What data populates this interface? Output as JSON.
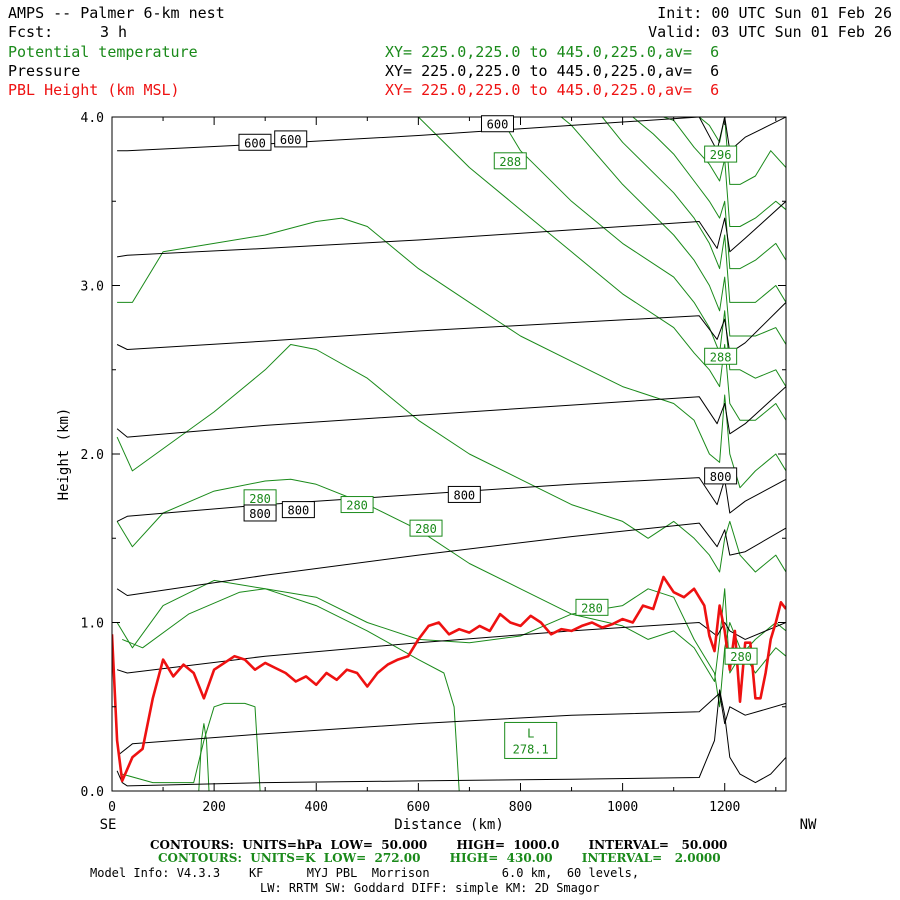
{
  "header": {
    "title": "AMPS -- Palmer 6-km nest",
    "fcst_label": "Fcst:",
    "fcst_value": "3 h",
    "init": "Init: 00 UTC Sun 01 Feb 26",
    "valid": "Valid: 03 UTC Sun 01 Feb 26"
  },
  "legend": [
    {
      "name": "Potential temperature",
      "xy": "XY= 225.0,225.0 to 445.0,225.0,av=  6",
      "color": "#1a8a1a"
    },
    {
      "name": "Pressure",
      "xy": "XY= 225.0,225.0 to 445.0,225.0,av=  6",
      "color": "#000000"
    },
    {
      "name": "PBL Height (km MSL)",
      "xy": "XY= 225.0,225.0 to 445.0,225.0,av=  6",
      "color": "#ee1111"
    }
  ],
  "footer": {
    "line1": "CONTOURS:  UNITS=hPa  LOW=  50.000       HIGH=  1000.0       INTERVAL=   50.000",
    "line2": "CONTOURS:  UNITS=K  LOW=  272.00       HIGH=  430.00       INTERVAL=   2.0000",
    "line3": "Model Info: V4.3.3    KF      MYJ PBL  Morrison          6.0 km,  60 levels,",
    "line4": "LW: RRTM SW: Goddard DIFF: simple KM: 2D Smagor"
  },
  "chart_data": {
    "type": "line",
    "xlabel": "Distance (km)",
    "ylabel": "Height (km)",
    "xlim": [
      0,
      1320
    ],
    "ylim": [
      0,
      4
    ],
    "x_ticks": [
      "0",
      "200",
      "400",
      "600",
      "800",
      "1000",
      "1200"
    ],
    "y_ticks": [
      "0.0",
      "1.0",
      "2.0",
      "3.0",
      "4.0"
    ],
    "x_end_labels": {
      "left": "SE",
      "right": "NW"
    },
    "contour_labels": [
      {
        "text": "600",
        "x": 280,
        "y": 3.85,
        "color": "#000000"
      },
      {
        "text": "600",
        "x": 350,
        "y": 3.87,
        "color": "#000000"
      },
      {
        "text": "600",
        "x": 755,
        "y": 3.96,
        "color": "#000000"
      },
      {
        "text": "288",
        "x": 780,
        "y": 3.74,
        "color": "#1a8a1a"
      },
      {
        "text": "296",
        "x": 1192,
        "y": 3.78,
        "color": "#1a8a1a"
      },
      {
        "text": "288",
        "x": 1192,
        "y": 2.58,
        "color": "#1a8a1a"
      },
      {
        "text": "800",
        "x": 1192,
        "y": 1.87,
        "color": "#000000"
      },
      {
        "text": "280",
        "x": 290,
        "y": 1.74,
        "color": "#1a8a1a"
      },
      {
        "text": "800",
        "x": 290,
        "y": 1.65,
        "color": "#000000"
      },
      {
        "text": "800",
        "x": 365,
        "y": 1.67,
        "color": "#000000"
      },
      {
        "text": "280",
        "x": 480,
        "y": 1.7,
        "color": "#1a8a1a"
      },
      {
        "text": "800",
        "x": 690,
        "y": 1.76,
        "color": "#000000"
      },
      {
        "text": "280",
        "x": 615,
        "y": 1.56,
        "color": "#1a8a1a"
      },
      {
        "text": "280",
        "x": 940,
        "y": 1.09,
        "color": "#1a8a1a"
      },
      {
        "text": "280",
        "x": 1232,
        "y": 0.8,
        "color": "#1a8a1a"
      }
    ],
    "low_marker": {
      "text": "L",
      "value": "278.1",
      "x": 820,
      "y": 0.3
    },
    "series": [
      {
        "name": "PBL Height (km MSL)",
        "color": "#ee1111",
        "x": [
          0,
          10,
          20,
          40,
          60,
          80,
          100,
          120,
          140,
          160,
          180,
          200,
          220,
          240,
          260,
          280,
          300,
          320,
          340,
          360,
          380,
          400,
          420,
          440,
          460,
          480,
          500,
          520,
          540,
          560,
          580,
          600,
          620,
          640,
          660,
          680,
          700,
          720,
          740,
          760,
          780,
          800,
          820,
          840,
          860,
          880,
          900,
          920,
          940,
          960,
          980,
          1000,
          1020,
          1040,
          1060,
          1080,
          1100,
          1120,
          1140,
          1160,
          1170,
          1180,
          1190,
          1200,
          1210,
          1220,
          1230,
          1240,
          1250,
          1260,
          1270,
          1280,
          1290,
          1300,
          1310,
          1320
        ],
        "y": [
          0.93,
          0.3,
          0.06,
          0.2,
          0.25,
          0.55,
          0.78,
          0.68,
          0.75,
          0.7,
          0.55,
          0.72,
          0.76,
          0.8,
          0.78,
          0.72,
          0.76,
          0.73,
          0.7,
          0.65,
          0.68,
          0.63,
          0.7,
          0.66,
          0.72,
          0.7,
          0.62,
          0.7,
          0.75,
          0.78,
          0.8,
          0.9,
          0.98,
          1.0,
          0.93,
          0.96,
          0.94,
          0.98,
          0.95,
          1.05,
          1.0,
          0.98,
          1.04,
          1.0,
          0.93,
          0.96,
          0.95,
          0.98,
          1.0,
          0.97,
          0.99,
          1.02,
          1.0,
          1.1,
          1.08,
          1.27,
          1.18,
          1.15,
          1.2,
          1.1,
          0.92,
          0.83,
          1.1,
          0.95,
          0.72,
          0.95,
          0.53,
          0.88,
          0.88,
          0.55,
          0.55,
          0.7,
          0.9,
          1.0,
          1.12,
          1.08
        ]
      },
      {
        "name": "Pressure",
        "color": "#000000",
        "levels": [
          {
            "x": [
              10,
              20,
              30,
              300,
              600,
              900,
              1150,
              1180,
              1190,
              1200,
              1210,
              1230,
              1260,
              1290,
              1320
            ],
            "y": [
              0.12,
              0.05,
              0.03,
              0.05,
              0.06,
              0.07,
              0.08,
              0.3,
              0.6,
              0.45,
              0.2,
              0.1,
              0.05,
              0.1,
              0.2
            ]
          },
          {
            "x": [
              15,
              40,
              300,
              600,
              900,
              1150,
              1190,
              1200,
              1210,
              1240,
              1320
            ],
            "y": [
              0.22,
              0.28,
              0.34,
              0.4,
              0.45,
              0.47,
              0.58,
              0.4,
              0.5,
              0.45,
              0.52
            ]
          },
          {
            "x": [
              10,
              30,
              300,
              600,
              900,
              1150,
              1185,
              1200,
              1210,
              1240,
              1320
            ],
            "y": [
              0.72,
              0.7,
              0.8,
              0.88,
              0.95,
              1.0,
              0.92,
              1.0,
              0.95,
              0.9,
              1.0
            ]
          },
          {
            "x": [
              10,
              30,
              300,
              600,
              900,
              1150,
              1185,
              1200,
              1210,
              1240,
              1320
            ],
            "y": [
              1.2,
              1.16,
              1.28,
              1.4,
              1.51,
              1.59,
              1.45,
              1.55,
              1.4,
              1.42,
              1.56
            ]
          },
          {
            "x": [
              10,
              30,
              300,
              600,
              900,
              1150,
              1185,
              1200,
              1210,
              1240,
              1320
            ],
            "y": [
              1.6,
              1.63,
              1.7,
              1.76,
              1.82,
              1.86,
              1.7,
              1.85,
              1.65,
              1.72,
              1.85
            ]
          },
          {
            "x": [
              10,
              30,
              300,
              600,
              900,
              1150,
              1185,
              1200,
              1210,
              1240,
              1320
            ],
            "y": [
              2.15,
              2.1,
              2.17,
              2.23,
              2.29,
              2.34,
              2.18,
              2.3,
              2.12,
              2.18,
              2.4
            ]
          },
          {
            "x": [
              10,
              30,
              300,
              600,
              900,
              1150,
              1185,
              1200,
              1210,
              1240,
              1320
            ],
            "y": [
              2.65,
              2.62,
              2.67,
              2.73,
              2.78,
              2.82,
              2.68,
              2.8,
              2.6,
              2.66,
              2.9
            ]
          },
          {
            "x": [
              10,
              30,
              300,
              600,
              900,
              1150,
              1185,
              1200,
              1210,
              1240,
              1320
            ],
            "y": [
              3.17,
              3.18,
              3.22,
              3.27,
              3.33,
              3.38,
              3.22,
              3.4,
              3.2,
              3.28,
              3.5
            ]
          },
          {
            "x": [
              10,
              30,
              300,
              600,
              900,
              1150,
              1185,
              1200,
              1210,
              1240,
              1320
            ],
            "y": [
              3.8,
              3.8,
              3.84,
              3.89,
              3.95,
              4.0,
              3.8,
              4.0,
              3.8,
              3.88,
              4.0
            ]
          }
        ]
      },
      {
        "name": "Potential temperature",
        "color": "#1a8a1a",
        "levels": [
          {
            "x": [
              20,
              80,
              160,
              180,
              200,
              220,
              260,
              280,
              290
            ],
            "y": [
              0.1,
              0.05,
              0.05,
              0.3,
              0.5,
              0.52,
              0.52,
              0.5,
              0.0
            ]
          },
          {
            "x": [
              170,
              175,
              180,
              185,
              190
            ],
            "y": [
              0.0,
              0.3,
              0.4,
              0.3,
              0.0
            ]
          },
          {
            "x": [
              20,
              60,
              150,
              250,
              300,
              400,
              500,
              600,
              650,
              670,
              680
            ],
            "y": [
              0.9,
              0.85,
              1.05,
              1.18,
              1.2,
              1.1,
              0.95,
              0.78,
              0.7,
              0.5,
              0.0
            ]
          },
          {
            "x": [
              10,
              40,
              100,
              200,
              300,
              400,
              500,
              600,
              700,
              800,
              900,
              1000,
              1050,
              1100,
              1140,
              1160,
              1180,
              1190,
              1200,
              1210,
              1230,
              1260,
              1300,
              1320
            ],
            "y": [
              1.0,
              0.85,
              1.1,
              1.25,
              1.2,
              1.15,
              1.0,
              0.9,
              0.88,
              0.92,
              1.05,
              1.1,
              1.2,
              1.15,
              0.9,
              0.8,
              0.7,
              0.5,
              0.85,
              1.0,
              0.85,
              0.7,
              0.85,
              0.8
            ]
          },
          {
            "x": [
              10,
              40,
              100,
              200,
              300,
              350,
              400,
              500,
              600,
              700,
              800,
              900,
              1000,
              1050,
              1100,
              1140,
              1160,
              1180,
              1190,
              1200,
              1210,
              1230,
              1260,
              1300,
              1320
            ],
            "y": [
              1.6,
              1.45,
              1.65,
              1.78,
              1.84,
              1.85,
              1.82,
              1.7,
              1.55,
              1.35,
              1.2,
              1.05,
              0.98,
              0.9,
              0.95,
              0.85,
              0.75,
              0.65,
              0.9,
              1.2,
              0.7,
              0.8,
              0.9,
              1.0,
              0.95
            ]
          },
          {
            "x": [
              10,
              40,
              200,
              300,
              350,
              400,
              500,
              600,
              700,
              800,
              900,
              1000,
              1050,
              1100,
              1140,
              1170,
              1190,
              1200,
              1210,
              1230,
              1260,
              1300,
              1320
            ],
            "y": [
              2.1,
              1.9,
              2.25,
              2.5,
              2.65,
              2.62,
              2.45,
              2.2,
              2.0,
              1.85,
              1.7,
              1.6,
              1.5,
              1.6,
              1.5,
              1.4,
              1.3,
              1.5,
              1.6,
              1.4,
              1.3,
              1.4,
              1.3
            ]
          },
          {
            "x": [
              10,
              40,
              100,
              200,
              300,
              400,
              450,
              500,
              600,
              700,
              800,
              900,
              1000,
              1100,
              1140,
              1170,
              1190,
              1200,
              1210,
              1230,
              1260,
              1300,
              1320
            ],
            "y": [
              2.9,
              2.9,
              3.2,
              3.25,
              3.3,
              3.38,
              3.4,
              3.35,
              3.1,
              2.9,
              2.7,
              2.55,
              2.4,
              2.3,
              2.2,
              2.0,
              1.95,
              2.35,
              2.0,
              1.8,
              1.9,
              2.0,
              1.9
            ]
          },
          {
            "x": [
              600,
              700,
              800,
              900,
              1000,
              1100,
              1140,
              1170,
              1190,
              1200,
              1210,
              1230,
              1260,
              1300,
              1320
            ],
            "y": [
              4.0,
              3.7,
              3.45,
              3.2,
              2.95,
              2.75,
              2.6,
              2.5,
              2.4,
              2.65,
              2.3,
              2.2,
              2.2,
              2.3,
              2.2
            ]
          },
          {
            "x": [
              760,
              800,
              900,
              1000,
              1100,
              1140,
              1170,
              1190,
              1200,
              1210,
              1230,
              1260,
              1300,
              1320
            ],
            "y": [
              4.0,
              3.8,
              3.5,
              3.25,
              3.05,
              2.9,
              2.75,
              2.6,
              2.85,
              2.5,
              2.5,
              2.45,
              2.5,
              2.4
            ]
          },
          {
            "x": [
              880,
              900,
              1000,
              1100,
              1140,
              1170,
              1190,
              1200,
              1210,
              1230,
              1260,
              1300,
              1320
            ],
            "y": [
              4.0,
              3.95,
              3.6,
              3.3,
              3.15,
              3.0,
              2.85,
              3.05,
              2.7,
              2.7,
              2.7,
              2.75,
              2.65
            ]
          },
          {
            "x": [
              960,
              1000,
              1100,
              1140,
              1170,
              1190,
              1200,
              1210,
              1230,
              1260,
              1300,
              1320
            ],
            "y": [
              4.0,
              3.85,
              3.55,
              3.4,
              3.25,
              3.1,
              3.3,
              2.9,
              2.9,
              2.9,
              3.0,
              2.9
            ]
          },
          {
            "x": [
              1020,
              1060,
              1100,
              1140,
              1170,
              1190,
              1200,
              1210,
              1230,
              1260,
              1300,
              1320
            ],
            "y": [
              4.0,
              3.9,
              3.78,
              3.62,
              3.5,
              3.4,
              3.5,
              3.1,
              3.1,
              3.15,
              3.25,
              3.15
            ]
          },
          {
            "x": [
              1080,
              1100,
              1140,
              1170,
              1190,
              1200,
              1210,
              1230,
              1260,
              1300,
              1320
            ],
            "y": [
              4.0,
              3.98,
              3.82,
              3.72,
              3.62,
              3.75,
              3.35,
              3.35,
              3.4,
              3.5,
              3.45
            ]
          },
          {
            "x": [
              1150,
              1170,
              1190,
              1200,
              1210,
              1230,
              1260,
              1290,
              1320
            ],
            "y": [
              4.0,
              3.95,
              3.85,
              4.0,
              3.6,
              3.6,
              3.65,
              3.8,
              3.7
            ]
          }
        ]
      }
    ]
  }
}
